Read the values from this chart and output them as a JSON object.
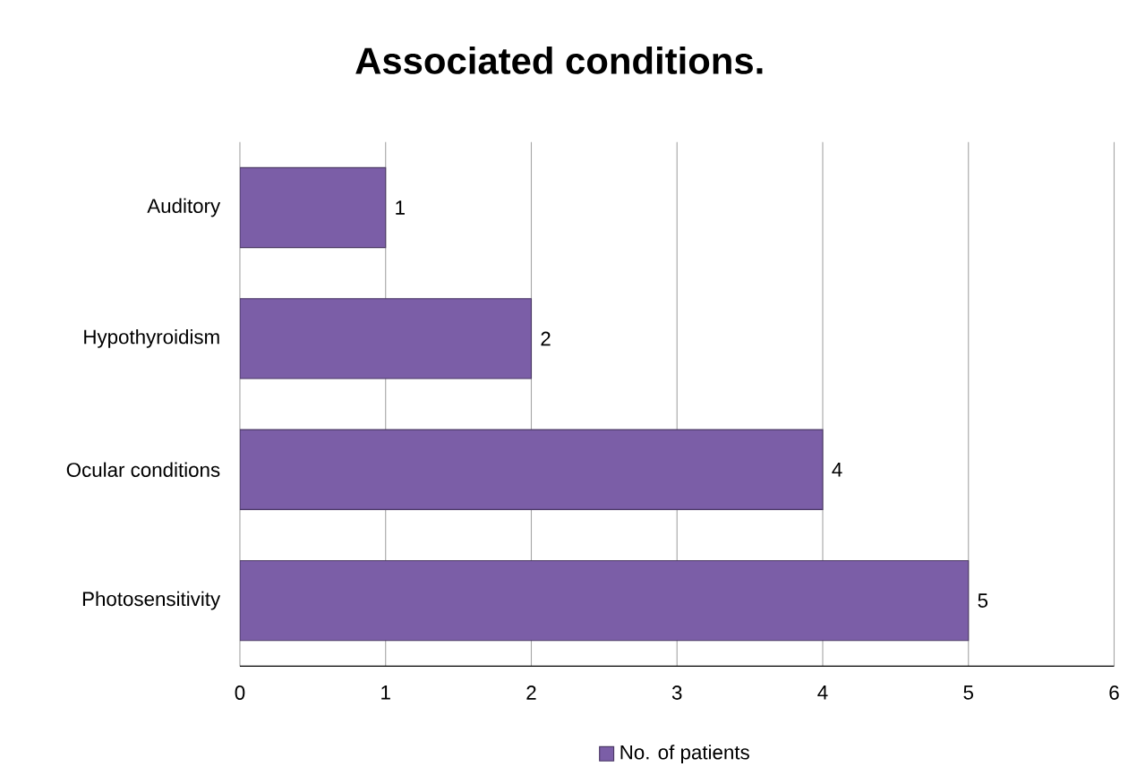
{
  "chart_data": {
    "type": "bar",
    "orientation": "horizontal",
    "title": "Associated conditions.",
    "categories": [
      "Auditory",
      "Hypothyroidism",
      "Ocular conditions",
      "Photosensitivity"
    ],
    "series": [
      {
        "name": "No. of patients",
        "color": "#7b5ea7",
        "values": [
          1,
          2,
          4,
          5
        ]
      }
    ],
    "xlim": [
      0,
      6
    ],
    "xticks": [
      0,
      1,
      2,
      3,
      4,
      5,
      6
    ],
    "grid": "x",
    "legend": "bottom",
    "data_labels": true
  }
}
